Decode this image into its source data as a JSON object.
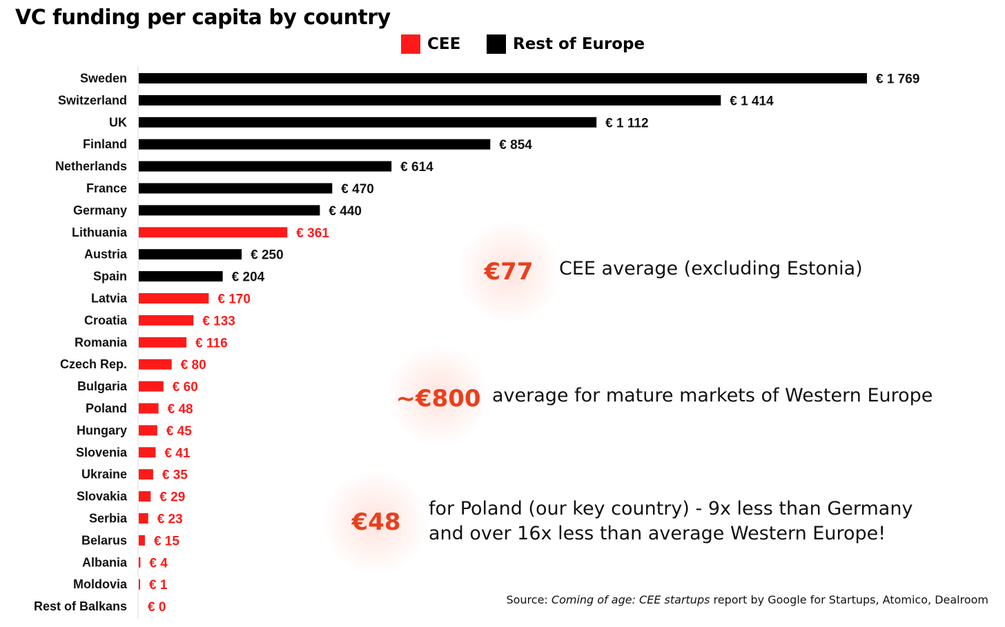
{
  "title": "VC funding per capita by country",
  "legend": [
    {
      "label": "CEE",
      "color": "#ff1a1a"
    },
    {
      "label": "Rest of Europe",
      "color": "#000000"
    }
  ],
  "chart_data": {
    "type": "bar",
    "orientation": "horizontal",
    "title": "VC funding per capita by country",
    "value_prefix": "€ ",
    "categories": [
      "Sweden",
      "Switzerland",
      "UK",
      "Finland",
      "Netherlands",
      "France",
      "Germany",
      "Lithuania",
      "Austria",
      "Spain",
      "Latvia",
      "Croatia",
      "Romania",
      "Czech Rep.",
      "Bulgaria",
      "Poland",
      "Hungary",
      "Slovenia",
      "Ukraine",
      "Slovakia",
      "Serbia",
      "Belarus",
      "Albania",
      "Moldovia",
      "Rest of Balkans"
    ],
    "values": [
      1769,
      1414,
      1112,
      854,
      614,
      470,
      440,
      361,
      250,
      204,
      170,
      133,
      116,
      80,
      60,
      48,
      45,
      41,
      35,
      29,
      23,
      15,
      4,
      1,
      0
    ],
    "value_labels": [
      "€ 1 769",
      "€ 1 414",
      "€ 1 112",
      "€ 854",
      "€ 614",
      "€ 470",
      "€ 440",
      "€ 361",
      "€ 250",
      "€ 204",
      "€ 170",
      "€ 133",
      "€ 116",
      "€ 80",
      "€ 60",
      "€ 48",
      "€ 45",
      "€ 41",
      "€ 35",
      "€ 29",
      "€ 23",
      "€ 15",
      "€ 4",
      "€ 1",
      "€ 0"
    ],
    "group": [
      "Rest of Europe",
      "Rest of Europe",
      "Rest of Europe",
      "Rest of Europe",
      "Rest of Europe",
      "Rest of Europe",
      "Rest of Europe",
      "CEE",
      "Rest of Europe",
      "Rest of Europe",
      "CEE",
      "CEE",
      "CEE",
      "CEE",
      "CEE",
      "CEE",
      "CEE",
      "CEE",
      "CEE",
      "CEE",
      "CEE",
      "CEE",
      "CEE",
      "CEE",
      "CEE"
    ],
    "colors": {
      "CEE": "#ff1a1a",
      "Rest of Europe": "#000000"
    },
    "xlim": [
      0,
      1769
    ],
    "grid": false,
    "legend_position": "top-center"
  },
  "callouts": [
    {
      "value": "€77",
      "text": "CEE average (excluding Estonia)"
    },
    {
      "value": "~€800",
      "text": "average for mature markets of Western Europe"
    },
    {
      "value": "€48",
      "text": "for Poland (our key country) -  9x less than Germany\nand over 16x less than average Western Europe!"
    }
  ],
  "source": {
    "prefix": "Source: ",
    "report": "Coming of age: CEE startups",
    "suffix": " report by Google for Startups, Atomico, Dealroom"
  }
}
